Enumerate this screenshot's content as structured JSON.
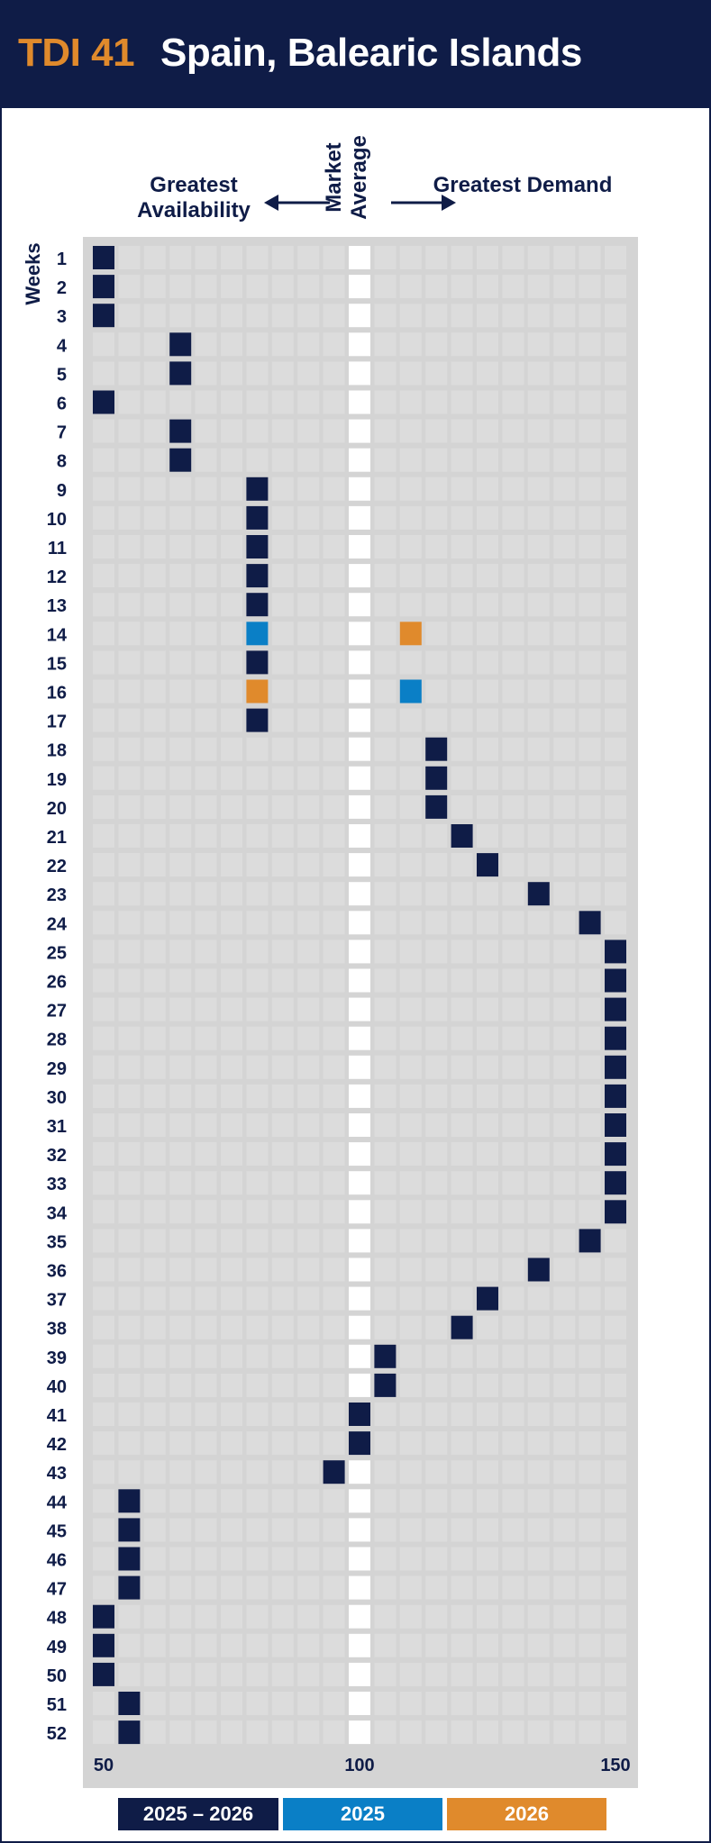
{
  "header": {
    "code": "TDI 41",
    "title": "Spain, Balearic Islands"
  },
  "labels": {
    "left": "Greatest Availability",
    "right": "Greatest Demand",
    "center": "Market Average",
    "weeks": "Weeks"
  },
  "colors": {
    "navy": "#0f1c47",
    "blue": "#0a7fc6",
    "orange": "#e08a2c",
    "cell": "#dcdcdc"
  },
  "legend": [
    {
      "label": "2025 – 2026",
      "color": "#0f1c47"
    },
    {
      "label": "2025",
      "color": "#0a7fc6"
    },
    {
      "label": "2026",
      "color": "#e08a2c"
    }
  ],
  "chart_data": {
    "type": "heatmap",
    "xlabel": "",
    "ylabel": "Weeks",
    "xlim": [
      50,
      150
    ],
    "x_ticks": [
      50,
      100,
      150
    ],
    "columns": [
      50,
      55,
      60,
      65,
      70,
      75,
      80,
      85,
      90,
      95,
      100,
      105,
      110,
      115,
      120,
      125,
      130,
      135,
      140,
      145,
      150
    ],
    "weeks": [
      1,
      2,
      3,
      4,
      5,
      6,
      7,
      8,
      9,
      10,
      11,
      12,
      13,
      14,
      15,
      16,
      17,
      18,
      19,
      20,
      21,
      22,
      23,
      24,
      25,
      26,
      27,
      28,
      29,
      30,
      31,
      32,
      33,
      34,
      35,
      36,
      37,
      38,
      39,
      40,
      41,
      42,
      43,
      44,
      45,
      46,
      47,
      48,
      49,
      50,
      51,
      52
    ],
    "series": [
      {
        "name": "2025 – 2026",
        "values": [
          50,
          50,
          50,
          65,
          65,
          50,
          65,
          65,
          80,
          80,
          80,
          80,
          80,
          null,
          80,
          null,
          80,
          115,
          115,
          115,
          120,
          125,
          135,
          145,
          150,
          150,
          150,
          150,
          150,
          150,
          150,
          150,
          150,
          150,
          145,
          135,
          125,
          120,
          105,
          105,
          100,
          100,
          95,
          55,
          55,
          55,
          55,
          50,
          50,
          50,
          55,
          55
        ]
      },
      {
        "name": "2025",
        "values": [
          null,
          null,
          null,
          null,
          null,
          null,
          null,
          null,
          null,
          null,
          null,
          null,
          null,
          80,
          null,
          110,
          null,
          null,
          null,
          null,
          null,
          null,
          null,
          null,
          null,
          null,
          null,
          null,
          null,
          null,
          null,
          null,
          null,
          null,
          null,
          null,
          null,
          null,
          null,
          null,
          null,
          null,
          null,
          null,
          null,
          null,
          null,
          null,
          null,
          null,
          null,
          null
        ]
      },
      {
        "name": "2026",
        "values": [
          null,
          null,
          null,
          null,
          null,
          null,
          null,
          null,
          null,
          null,
          null,
          null,
          null,
          110,
          null,
          80,
          null,
          null,
          null,
          null,
          null,
          null,
          null,
          null,
          null,
          null,
          null,
          null,
          null,
          null,
          null,
          null,
          null,
          null,
          null,
          null,
          null,
          null,
          null,
          null,
          null,
          null,
          null,
          null,
          null,
          null,
          null,
          null,
          null,
          null,
          null,
          null
        ]
      }
    ]
  }
}
